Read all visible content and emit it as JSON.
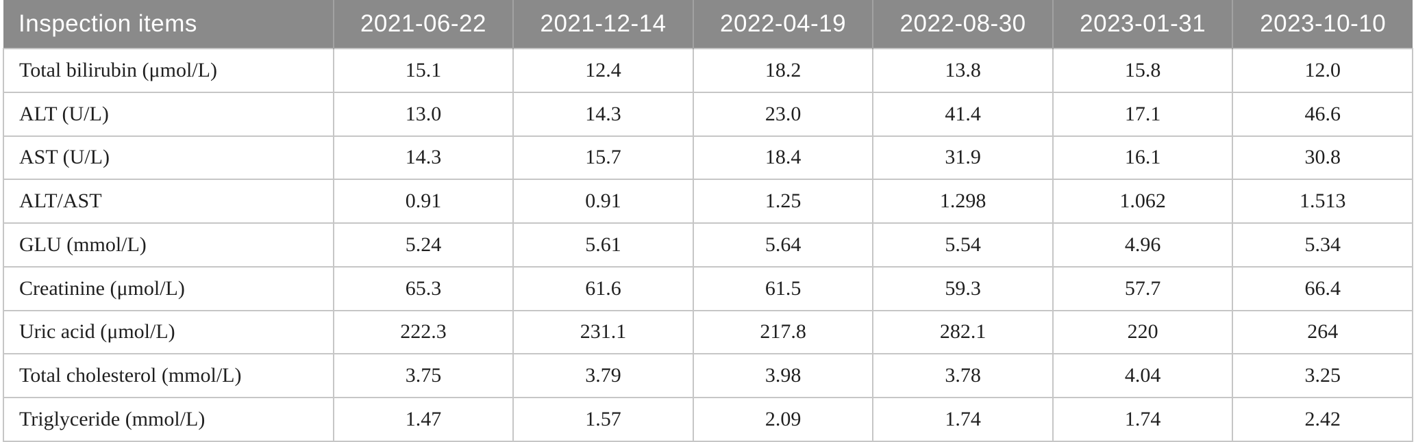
{
  "table": {
    "columns": [
      "Inspection items",
      "2021-06-22",
      "2021-12-14",
      "2022-04-19",
      "2022-08-30",
      "2023-01-31",
      "2023-10-10"
    ],
    "rows": [
      {
        "label": "Total bilirubin (μmol/L)",
        "values": [
          "15.1",
          "12.4",
          "18.2",
          "13.8",
          "15.8",
          "12.0"
        ]
      },
      {
        "label": "ALT (U/L)",
        "values": [
          "13.0",
          "14.3",
          "23.0",
          "41.4",
          "17.1",
          "46.6"
        ]
      },
      {
        "label": "AST (U/L)",
        "values": [
          "14.3",
          "15.7",
          "18.4",
          "31.9",
          "16.1",
          "30.8"
        ]
      },
      {
        "label": "ALT/AST",
        "values": [
          "0.91",
          "0.91",
          "1.25",
          "1.298",
          "1.062",
          "1.513"
        ]
      },
      {
        "label": "GLU (mmol/L)",
        "values": [
          "5.24",
          "5.61",
          "5.64",
          "5.54",
          "4.96",
          "5.34"
        ]
      },
      {
        "label": "Creatinine (μmol/L)",
        "values": [
          "65.3",
          "61.6",
          "61.5",
          "59.3",
          "57.7",
          "66.4"
        ]
      },
      {
        "label": "Uric acid (μmol/L)",
        "values": [
          "222.3",
          "231.1",
          "217.8",
          "282.1",
          "220",
          "264"
        ]
      },
      {
        "label": "Total cholesterol (mmol/L)",
        "values": [
          "3.75",
          "3.79",
          "3.98",
          "3.78",
          "4.04",
          "3.25"
        ]
      },
      {
        "label": "Triglyceride (mmol/L)",
        "values": [
          "1.47",
          "1.57",
          "2.09",
          "1.74",
          "1.74",
          "2.42"
        ]
      }
    ]
  },
  "chart_data": {
    "type": "table",
    "row_header": "Inspection items",
    "columns": [
      "2021-06-22",
      "2021-12-14",
      "2022-04-19",
      "2022-08-30",
      "2023-01-31",
      "2023-10-10"
    ],
    "series": [
      {
        "name": "Total bilirubin (μmol/L)",
        "values": [
          15.1,
          12.4,
          18.2,
          13.8,
          15.8,
          12.0
        ]
      },
      {
        "name": "ALT (U/L)",
        "values": [
          13.0,
          14.3,
          23.0,
          41.4,
          17.1,
          46.6
        ]
      },
      {
        "name": "AST (U/L)",
        "values": [
          14.3,
          15.7,
          18.4,
          31.9,
          16.1,
          30.8
        ]
      },
      {
        "name": "ALT/AST",
        "values": [
          0.91,
          0.91,
          1.25,
          1.298,
          1.062,
          1.513
        ]
      },
      {
        "name": "GLU (mmol/L)",
        "values": [
          5.24,
          5.61,
          5.64,
          5.54,
          4.96,
          5.34
        ]
      },
      {
        "name": "Creatinine (μmol/L)",
        "values": [
          65.3,
          61.6,
          61.5,
          59.3,
          57.7,
          66.4
        ]
      },
      {
        "name": "Uric acid (μmol/L)",
        "values": [
          222.3,
          231.1,
          217.8,
          282.1,
          220,
          264
        ]
      },
      {
        "name": "Total cholesterol (mmol/L)",
        "values": [
          3.75,
          3.79,
          3.98,
          3.78,
          4.04,
          3.25
        ]
      },
      {
        "name": "Triglyceride (mmol/L)",
        "values": [
          1.47,
          1.57,
          2.09,
          1.74,
          1.74,
          2.42
        ]
      }
    ]
  },
  "colors": {
    "header_bg": "#8a8a8a",
    "header_text": "#ffffff",
    "header_separator": "#a2a2a2",
    "border": "#c6c6c6",
    "body_text": "#1f1f1f",
    "row_bg": "#ffffff"
  }
}
